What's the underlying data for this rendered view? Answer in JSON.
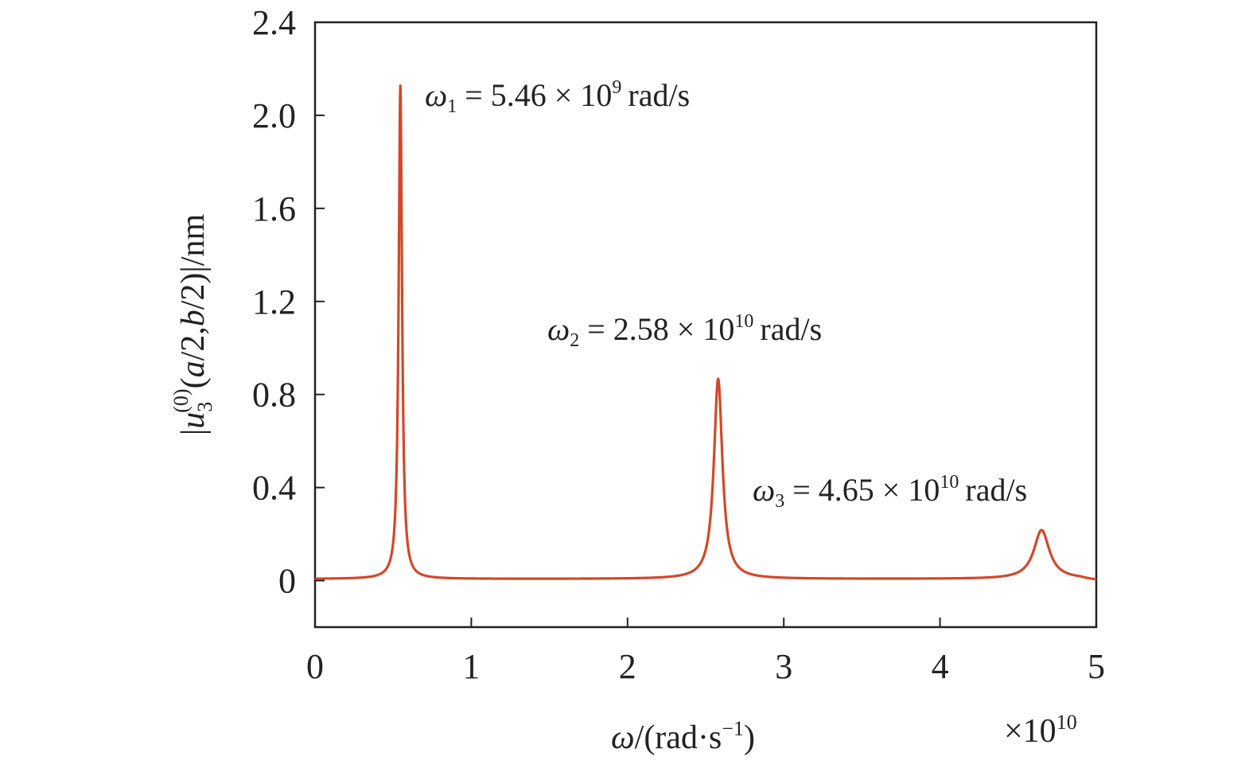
{
  "chart_data": {
    "type": "line",
    "xlabel": {
      "symbol": "ω",
      "rest": "/(rad·s",
      "exp": "−1",
      "close": ")"
    },
    "x_multiplier": {
      "prefix": "×10",
      "exp": "10"
    },
    "ylabel": {
      "pre": "|",
      "var": "u",
      "sub": "3",
      "sup": "(0)",
      "args_open": "(",
      "a": "a",
      "mid1": "/2,",
      "b": "b",
      "mid2": "/2)",
      "post": "|/nm"
    },
    "xlim": [
      0,
      5
    ],
    "ylim": [
      -0.2,
      2.4
    ],
    "x_ticks": [
      0,
      1,
      2,
      3,
      4,
      5
    ],
    "x_tick_labels": [
      "0",
      "1",
      "2",
      "3",
      "4",
      "5"
    ],
    "y_ticks": [
      0,
      0.4,
      0.8,
      1.2,
      1.6,
      2.0,
      2.4
    ],
    "y_tick_labels": [
      "0",
      "0.4",
      "0.8",
      "1.2",
      "1.6",
      "2.0",
      "2.4"
    ],
    "grid": false,
    "series": [
      {
        "color": "#d0492b",
        "peaks": [
          {
            "x": 0.546,
            "y": 2.12,
            "width": 0.013
          },
          {
            "x": 2.58,
            "y": 0.86,
            "width": 0.033
          },
          {
            "x": 4.65,
            "y": 0.21,
            "width": 0.06
          }
        ],
        "baseline": 0.007,
        "samples": [
          [
            0.0,
            0.012
          ],
          [
            0.3,
            0.018
          ],
          [
            0.45,
            0.06
          ],
          [
            0.52,
            0.45
          ],
          [
            0.546,
            2.12
          ],
          [
            0.57,
            0.45
          ],
          [
            0.65,
            0.05
          ],
          [
            1.0,
            0.012
          ],
          [
            1.5,
            0.007
          ],
          [
            2.0,
            0.012
          ],
          [
            2.3,
            0.04
          ],
          [
            2.5,
            0.2
          ],
          [
            2.58,
            0.86
          ],
          [
            2.66,
            0.2
          ],
          [
            2.9,
            0.04
          ],
          [
            3.5,
            0.012
          ],
          [
            4.0,
            0.012
          ],
          [
            4.4,
            0.03
          ],
          [
            4.6,
            0.14
          ],
          [
            4.65,
            0.21
          ],
          [
            4.7,
            0.14
          ],
          [
            4.85,
            0.04
          ],
          [
            5.0,
            0.0
          ]
        ]
      }
    ],
    "annotations": [
      {
        "var": "ω",
        "sub": "1",
        "text": "= 5.46 × 10",
        "exp": "9",
        "unit": "rad/s"
      },
      {
        "var": "ω",
        "sub": "2",
        "text": "= 2.58 × 10",
        "exp": "10",
        "unit": "rad/s"
      },
      {
        "var": "ω",
        "sub": "3",
        "text": "= 4.65 × 10",
        "exp": "10",
        "unit": "rad/s"
      }
    ]
  }
}
